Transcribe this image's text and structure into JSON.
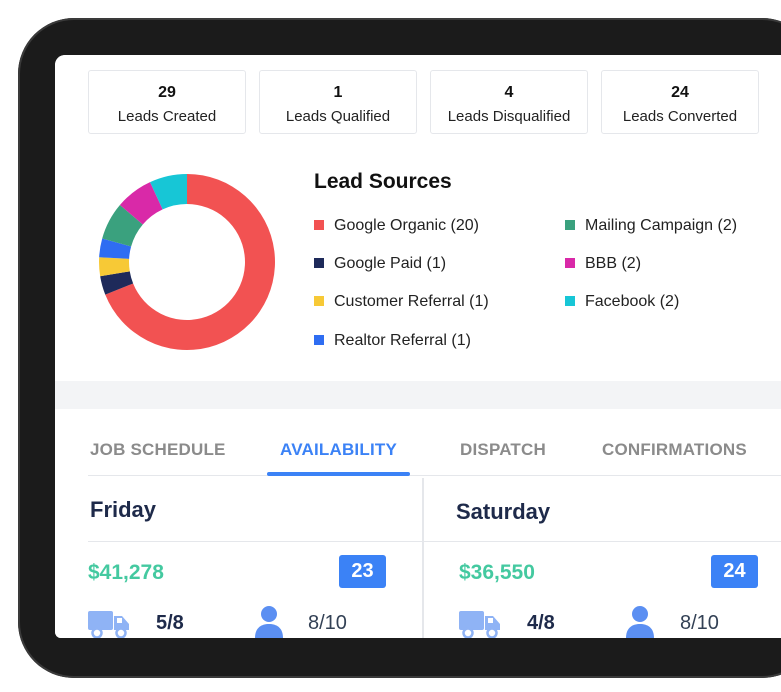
{
  "stats": [
    {
      "value": "29",
      "label": "Leads Created"
    },
    {
      "value": "1",
      "label": "Leads Qualified"
    },
    {
      "value": "4",
      "label": "Leads Disqualified"
    },
    {
      "value": "24",
      "label": "Leads Converted"
    }
  ],
  "lead_sources": {
    "title": "Lead Sources",
    "items": [
      {
        "label": "Google Organic (20)",
        "color": "#f25252",
        "count": 20
      },
      {
        "label": "Google Paid (1)",
        "color": "#1e2a5a",
        "count": 1
      },
      {
        "label": "Customer Referral (1)",
        "color": "#f7c936",
        "count": 1
      },
      {
        "label": "Realtor Referral (1)",
        "color": "#2f6df2",
        "count": 1
      },
      {
        "label": "Mailing Campaign (2)",
        "color": "#3aa17e",
        "count": 2
      },
      {
        "label": "BBB (2)",
        "color": "#d929a8",
        "count": 2
      },
      {
        "label": "Facebook (2)",
        "color": "#17c6d6",
        "count": 2
      }
    ]
  },
  "tabs": [
    "JOB SCHEDULE",
    "AVAILABILITY",
    "DISPATCH",
    "CONFIRMATIONS"
  ],
  "active_tab": "AVAILABILITY",
  "days": [
    {
      "name": "Friday",
      "amount": "$41,278",
      "badge": "23",
      "trucks": "5/8",
      "crew": "8/10"
    },
    {
      "name": "Saturday",
      "amount": "$36,550",
      "badge": "24",
      "trucks": "4/8",
      "crew": "8/10"
    }
  ],
  "colors": {
    "accent": "#3b82f6",
    "money": "#44c9a0",
    "dark_text": "#1e2a4a"
  },
  "icons": {
    "truck": "truck-icon",
    "person": "person-icon"
  }
}
